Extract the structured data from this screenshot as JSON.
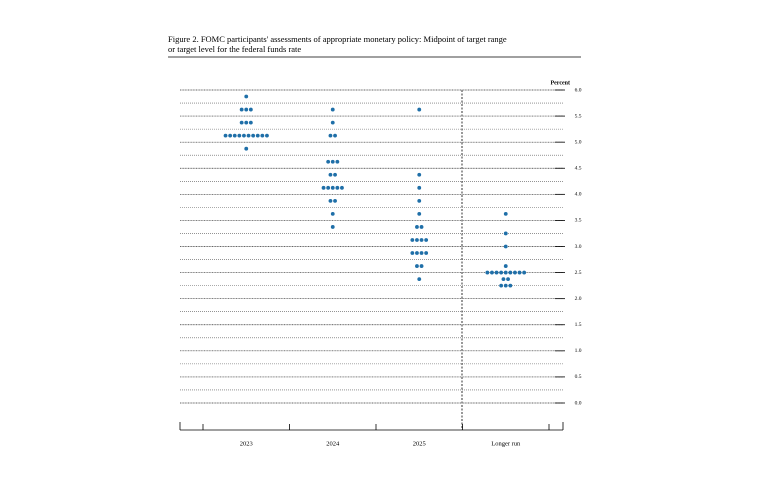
{
  "chart_data": {
    "type": "dot_plot",
    "title": "Figure 2.  FOMC participants' assessments of appropriate monetary policy: Midpoint of target range",
    "subtitle": "or target level for the federal funds rate",
    "y_label": "Percent",
    "categories": [
      "2023",
      "2024",
      "2025",
      "Longer run"
    ],
    "values": [
      [
        5.875,
        5.625,
        5.625,
        5.625,
        5.375,
        5.375,
        5.375,
        5.125,
        5.125,
        5.125,
        5.125,
        5.125,
        5.125,
        5.125,
        5.125,
        5.125,
        5.125,
        4.875
      ],
      [
        5.625,
        5.375,
        5.125,
        5.125,
        4.625,
        4.625,
        4.625,
        4.375,
        4.375,
        4.125,
        4.125,
        4.125,
        4.125,
        4.125,
        3.875,
        3.875,
        3.625,
        3.375
      ],
      [
        5.625,
        4.375,
        4.125,
        3.875,
        3.625,
        3.375,
        3.375,
        3.125,
        3.125,
        3.125,
        3.125,
        2.875,
        2.875,
        2.875,
        2.875,
        2.625,
        2.625,
        2.375
      ],
      [
        3.625,
        3.25,
        3.0,
        2.625,
        2.5,
        2.5,
        2.5,
        2.5,
        2.5,
        2.5,
        2.5,
        2.5,
        2.5,
        2.375,
        2.375,
        2.25,
        2.25,
        2.25
      ]
    ],
    "color": "#1f6fa8",
    "ylim": [
      0,
      6
    ],
    "yticks": [
      {
        "value": 0,
        "label": "0.0"
      },
      0.5,
      {
        "value": 1,
        "label": "1.0"
      },
      1.5,
      {
        "value": 2,
        "label": "2.0"
      },
      2.5,
      {
        "value": 3,
        "label": "3.0"
      },
      3.5,
      {
        "value": 4,
        "label": "4.0"
      },
      4.5,
      {
        "value": 5,
        "label": "5.0"
      },
      5.5,
      {
        "value": 6,
        "label": "6.0"
      }
    ],
    "grid": true
  }
}
